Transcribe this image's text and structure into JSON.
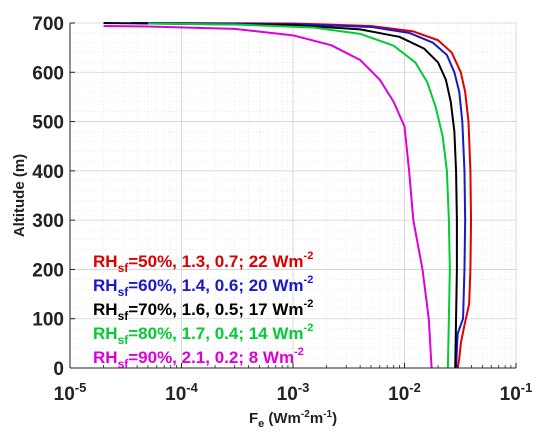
{
  "chart_data": {
    "type": "line",
    "x_scale": "log",
    "xlim": [
      1e-05,
      0.1
    ],
    "ylim": [
      0,
      700
    ],
    "xlabel": {
      "base": "F",
      "sub": "e",
      "units": " (Wm",
      "sup1": "-2",
      "mid": "m",
      "sup2": "-1",
      "end": ")"
    },
    "ylabel": "Altitude (m)",
    "grid": true,
    "legend_position": "bottom-left",
    "x_ticks": [
      {
        "value": 1e-05,
        "base": "10",
        "exp": "-5"
      },
      {
        "value": 0.0001,
        "base": "10",
        "exp": "-4"
      },
      {
        "value": 0.001,
        "base": "10",
        "exp": "-3"
      },
      {
        "value": 0.01,
        "base": "10",
        "exp": "-2"
      },
      {
        "value": 0.1,
        "base": "10",
        "exp": "-1"
      }
    ],
    "y_ticks": [
      0,
      100,
      200,
      300,
      400,
      500,
      600,
      700
    ],
    "series": [
      {
        "color": "#dd0000",
        "legend": {
          "main": "RH",
          "sub": "sf",
          "text": "=50%, 1.3, 0.7; 22 Wm",
          "sup": "-2"
        },
        "points": [
          [
            0.03,
            0
          ],
          [
            0.031,
            20
          ],
          [
            0.032,
            50
          ],
          [
            0.034,
            80
          ],
          [
            0.038,
            130
          ],
          [
            0.039,
            200
          ],
          [
            0.0395,
            300
          ],
          [
            0.039,
            400
          ],
          [
            0.0375,
            500
          ],
          [
            0.035,
            560
          ],
          [
            0.032,
            600
          ],
          [
            0.0265,
            640
          ],
          [
            0.02,
            665
          ],
          [
            0.012,
            683
          ],
          [
            0.005,
            694
          ],
          [
            0.001,
            699
          ],
          [
            4e-05,
            700
          ]
        ]
      },
      {
        "color": "#1818cc",
        "legend": {
          "main": "RH",
          "sub": "sf",
          "text": "=60%, 1.4, 0.6; 20 Wm",
          "sup": "-2"
        },
        "points": [
          [
            0.029,
            0
          ],
          [
            0.0295,
            40
          ],
          [
            0.03,
            70
          ],
          [
            0.0335,
            100
          ],
          [
            0.0345,
            200
          ],
          [
            0.035,
            300
          ],
          [
            0.0345,
            400
          ],
          [
            0.033,
            500
          ],
          [
            0.031,
            560
          ],
          [
            0.028,
            600
          ],
          [
            0.024,
            635
          ],
          [
            0.018,
            660
          ],
          [
            0.011,
            680
          ],
          [
            0.005,
            692
          ],
          [
            0.001,
            698
          ],
          [
            3.5e-05,
            700
          ]
        ]
      },
      {
        "color": "#000000",
        "legend": {
          "main": "RH",
          "sub": "sf",
          "text": "=70%, 1.6, 0.5; 17 Wm",
          "sup": "-2"
        },
        "points": [
          [
            0.0285,
            0
          ],
          [
            0.029,
            100
          ],
          [
            0.0295,
            200
          ],
          [
            0.0295,
            300
          ],
          [
            0.029,
            400
          ],
          [
            0.028,
            480
          ],
          [
            0.026,
            540
          ],
          [
            0.0235,
            585
          ],
          [
            0.02,
            620
          ],
          [
            0.015,
            648
          ],
          [
            0.009,
            672
          ],
          [
            0.004,
            687
          ],
          [
            0.001,
            696
          ],
          [
            2e-05,
            700
          ]
        ]
      },
      {
        "color": "#00cc33",
        "legend": {
          "main": "RH",
          "sub": "sf",
          "text": "=80%, 1.7, 0.4; 14 Wm",
          "sup": "-2"
        },
        "points": [
          [
            0.0245,
            0
          ],
          [
            0.025,
            100
          ],
          [
            0.0255,
            200
          ],
          [
            0.025,
            300
          ],
          [
            0.024,
            400
          ],
          [
            0.022,
            470
          ],
          [
            0.019,
            530
          ],
          [
            0.016,
            580
          ],
          [
            0.0125,
            620
          ],
          [
            0.008,
            654
          ],
          [
            0.004,
            678
          ],
          [
            0.0015,
            691
          ],
          [
            0.0003,
            697
          ],
          [
            5e-05,
            699
          ]
        ]
      },
      {
        "color": "#dd00dd",
        "legend": {
          "main": "RH",
          "sub": "sf",
          "text": "=90%, 2.1, 0.2; 8 Wm",
          "sup": "-2"
        },
        "points": [
          [
            0.0175,
            0
          ],
          [
            0.0165,
            100
          ],
          [
            0.0145,
            200
          ],
          [
            0.012,
            300
          ],
          [
            0.011,
            400
          ],
          [
            0.01,
            490
          ],
          [
            0.008,
            540
          ],
          [
            0.006,
            585
          ],
          [
            0.004,
            625
          ],
          [
            0.0022,
            655
          ],
          [
            0.001,
            675
          ],
          [
            0.0003,
            688
          ],
          [
            5e-05,
            693
          ],
          [
            2e-05,
            694
          ]
        ]
      }
    ]
  }
}
